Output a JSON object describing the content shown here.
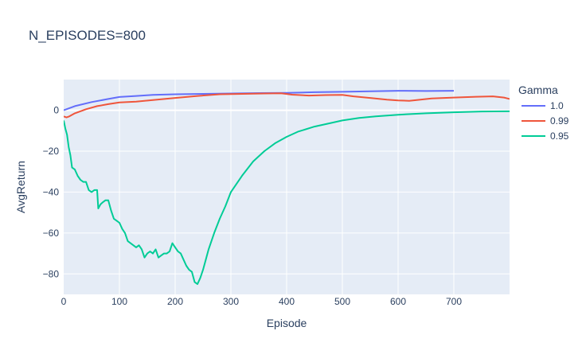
{
  "chart_data": {
    "type": "line",
    "title": "N_EPISODES=800",
    "xlabel": "Episode",
    "ylabel": "AvgReturn",
    "xlim": [
      0,
      800
    ],
    "ylim": [
      -90,
      15
    ],
    "x_ticks": [
      0,
      100,
      200,
      300,
      400,
      500,
      600,
      700
    ],
    "y_ticks": [
      0,
      -20,
      -40,
      -60,
      -80
    ],
    "grid": true,
    "legend": {
      "title": "Gamma",
      "position": "right"
    },
    "series": [
      {
        "name": "1.0",
        "color": "#636efa",
        "points": [
          [
            0,
            0
          ],
          [
            20,
            2
          ],
          [
            50,
            4
          ],
          [
            80,
            5.5
          ],
          [
            100,
            6.5
          ],
          [
            130,
            7
          ],
          [
            160,
            7.5
          ],
          [
            200,
            7.8
          ],
          [
            250,
            8
          ],
          [
            300,
            8.2
          ],
          [
            350,
            8.4
          ],
          [
            400,
            8.5
          ],
          [
            450,
            8.8
          ],
          [
            500,
            9
          ],
          [
            550,
            9.3
          ],
          [
            600,
            9.5
          ],
          [
            650,
            9.4
          ],
          [
            700,
            9.5
          ]
        ]
      },
      {
        "name": "0.99",
        "color": "#ef553b",
        "points": [
          [
            0,
            -3
          ],
          [
            5,
            -3.5
          ],
          [
            10,
            -3
          ],
          [
            20,
            -1.5
          ],
          [
            40,
            0.5
          ],
          [
            60,
            2
          ],
          [
            80,
            3
          ],
          [
            100,
            3.8
          ],
          [
            130,
            4.2
          ],
          [
            160,
            5
          ],
          [
            200,
            6
          ],
          [
            240,
            7
          ],
          [
            280,
            7.8
          ],
          [
            320,
            8
          ],
          [
            360,
            8.2
          ],
          [
            390,
            8.3
          ],
          [
            410,
            7.6
          ],
          [
            440,
            7.2
          ],
          [
            470,
            7.4
          ],
          [
            500,
            7.5
          ],
          [
            520,
            6.8
          ],
          [
            550,
            6
          ],
          [
            580,
            5.2
          ],
          [
            600,
            4.8
          ],
          [
            620,
            4.6
          ],
          [
            640,
            5.2
          ],
          [
            660,
            5.8
          ],
          [
            700,
            6.2
          ],
          [
            740,
            6.6
          ],
          [
            770,
            6.8
          ],
          [
            790,
            6.2
          ],
          [
            800,
            5.5
          ]
        ]
      },
      {
        "name": "0.95",
        "color": "#00cc96",
        "points": [
          [
            0,
            -5
          ],
          [
            3,
            -9
          ],
          [
            6,
            -12
          ],
          [
            9,
            -18
          ],
          [
            12,
            -22
          ],
          [
            15,
            -28
          ],
          [
            20,
            -29
          ],
          [
            25,
            -32
          ],
          [
            30,
            -34
          ],
          [
            35,
            -35
          ],
          [
            40,
            -35
          ],
          [
            45,
            -39
          ],
          [
            50,
            -40
          ],
          [
            55,
            -39
          ],
          [
            60,
            -39
          ],
          [
            62,
            -48
          ],
          [
            66,
            -46
          ],
          [
            70,
            -45
          ],
          [
            75,
            -44
          ],
          [
            80,
            -44
          ],
          [
            85,
            -49
          ],
          [
            90,
            -53
          ],
          [
            95,
            -54
          ],
          [
            100,
            -55
          ],
          [
            105,
            -58
          ],
          [
            110,
            -60
          ],
          [
            115,
            -64
          ],
          [
            120,
            -65
          ],
          [
            125,
            -66
          ],
          [
            130,
            -67
          ],
          [
            135,
            -66
          ],
          [
            140,
            -68
          ],
          [
            145,
            -72
          ],
          [
            150,
            -70
          ],
          [
            155,
            -69
          ],
          [
            160,
            -70
          ],
          [
            165,
            -68
          ],
          [
            170,
            -72
          ],
          [
            175,
            -71
          ],
          [
            180,
            -70
          ],
          [
            185,
            -70
          ],
          [
            190,
            -69
          ],
          [
            195,
            -65
          ],
          [
            200,
            -67
          ],
          [
            205,
            -69
          ],
          [
            210,
            -70
          ],
          [
            215,
            -73
          ],
          [
            220,
            -76
          ],
          [
            225,
            -78
          ],
          [
            230,
            -79
          ],
          [
            235,
            -84
          ],
          [
            240,
            -85
          ],
          [
            245,
            -82
          ],
          [
            250,
            -78
          ],
          [
            255,
            -73
          ],
          [
            260,
            -68
          ],
          [
            270,
            -60
          ],
          [
            280,
            -53
          ],
          [
            290,
            -47
          ],
          [
            300,
            -40
          ],
          [
            320,
            -32
          ],
          [
            340,
            -25
          ],
          [
            360,
            -20
          ],
          [
            380,
            -16
          ],
          [
            400,
            -13
          ],
          [
            420,
            -10.5
          ],
          [
            450,
            -8
          ],
          [
            480,
            -6.2
          ],
          [
            500,
            -5
          ],
          [
            530,
            -3.8
          ],
          [
            560,
            -3
          ],
          [
            600,
            -2.2
          ],
          [
            650,
            -1.5
          ],
          [
            700,
            -1
          ],
          [
            750,
            -0.6
          ],
          [
            800,
            -0.5
          ]
        ]
      }
    ]
  }
}
